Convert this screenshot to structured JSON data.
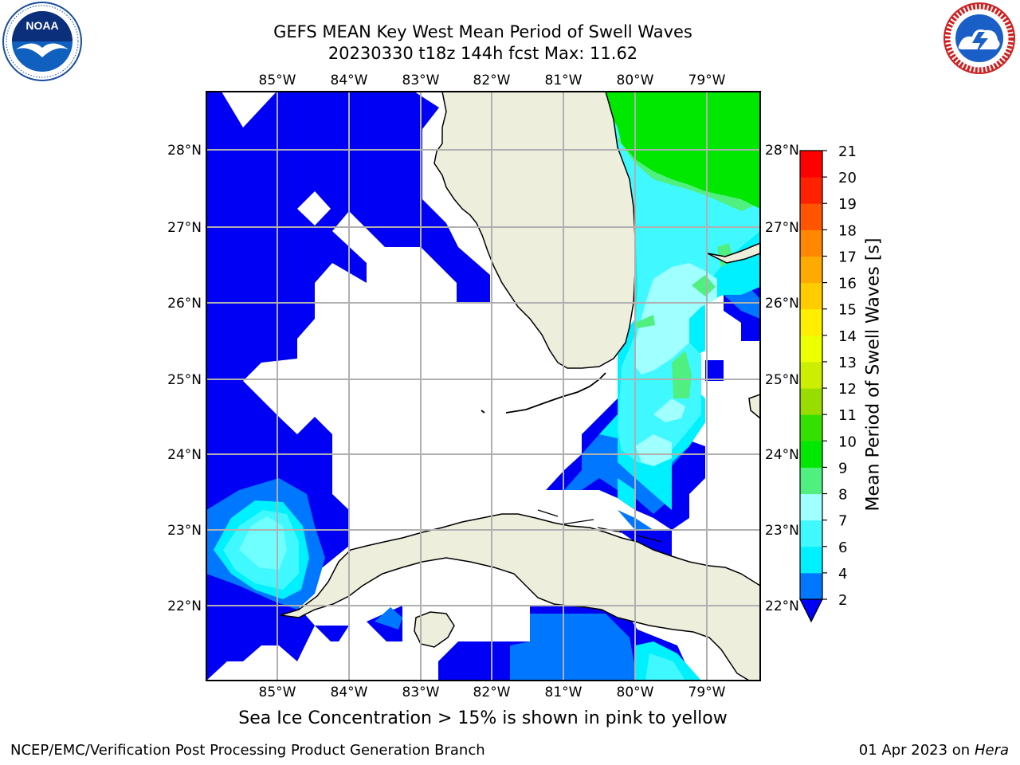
{
  "title_line1": "GEFS MEAN Key West Mean Period of Swell Waves",
  "title_line2": "20230330 t18z 144h fcst   Max: 11.62",
  "logos": {
    "left": "NOAA",
    "right": "NATIONAL WEATHER SERVICE"
  },
  "map": {
    "lon_ticks": [
      "85°W",
      "84°W",
      "83°W",
      "82°W",
      "81°W",
      "80°W",
      "79°W"
    ],
    "lat_ticks": [
      "22°N",
      "23°N",
      "24°N",
      "25°N",
      "26°N",
      "27°N",
      "28°N"
    ],
    "land_color": "#eeeedd",
    "colors": {
      "c2": "#0000f5",
      "c4": "#0077ff",
      "c6": "#00f0ff",
      "c7": "#40f8ff",
      "c8": "#a0ffff",
      "c9": "#50f080",
      "c10": "#00e800"
    }
  },
  "colorbar": {
    "label": "Mean Period of Swell Waves [s]",
    "ticks": [
      "2",
      "4",
      "6",
      "7",
      "8",
      "9",
      "10",
      "11",
      "12",
      "13",
      "14",
      "15",
      "16",
      "17",
      "18",
      "19",
      "20",
      "21"
    ],
    "colors": [
      "#0077ff",
      "#00f0ff",
      "#40f8ff",
      "#a0ffff",
      "#50f080",
      "#00e800",
      "#33e000",
      "#99dd00",
      "#ccee00",
      "#eeff00",
      "#ffee00",
      "#ffcc00",
      "#ffaa00",
      "#ff8800",
      "#ff5500",
      "#ff2200",
      "#ff0000"
    ],
    "extend_color": "#0000f5"
  },
  "bottom_note": "Sea Ice Concentration > 15% is shown in pink to yellow",
  "footer_left": "NCEP/EMC/Verification Post Processing Product Generation Branch",
  "footer_date": "01 Apr 2023 on",
  "footer_host": "Hera"
}
